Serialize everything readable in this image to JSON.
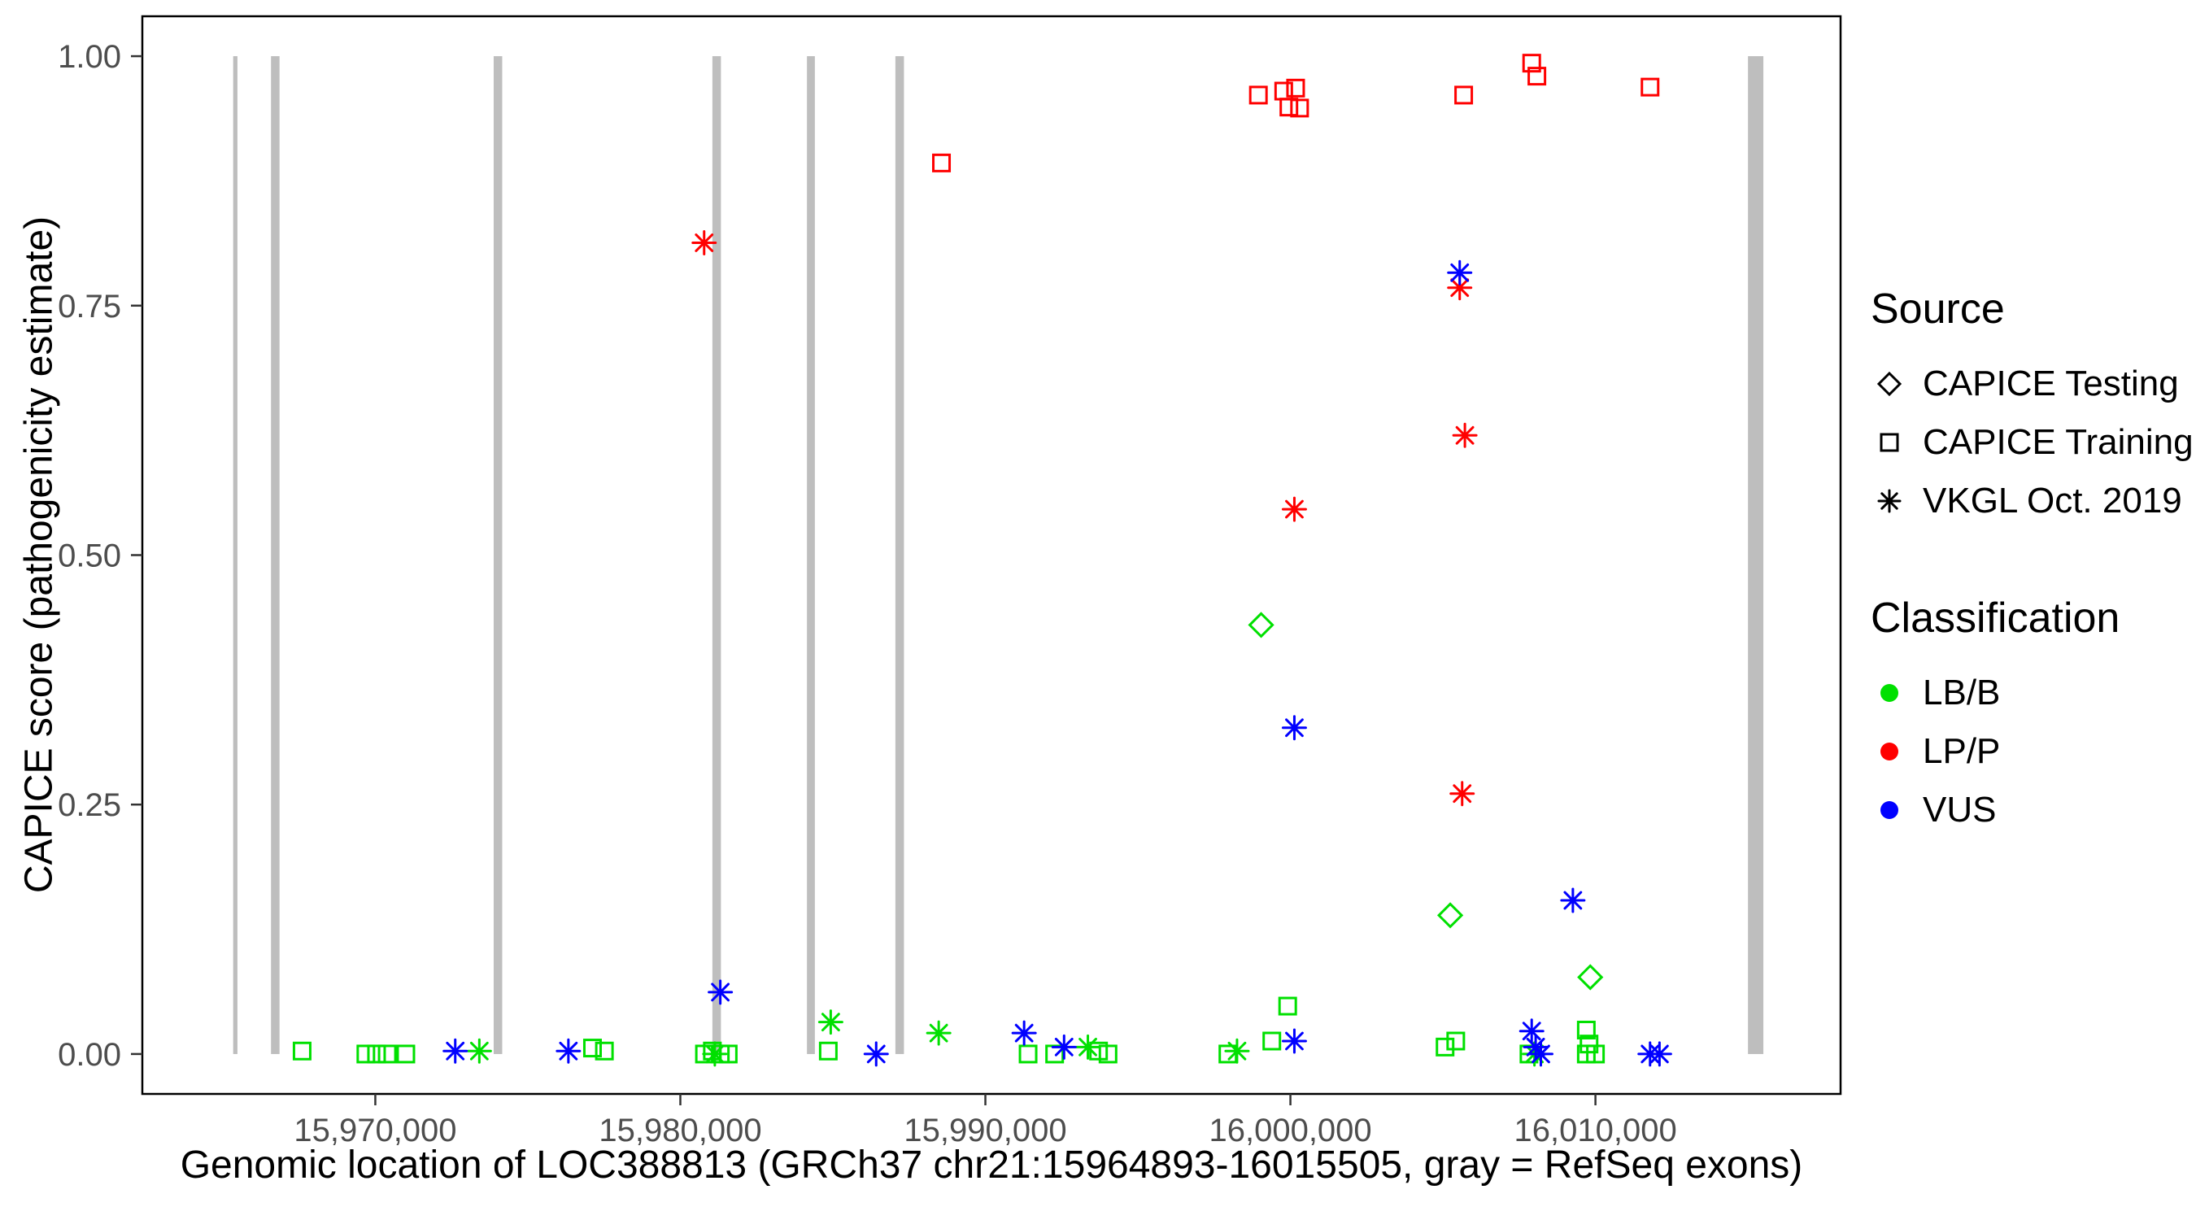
{
  "panel": {
    "background": "#FFFFFF",
    "border_color": "#000000",
    "tick_color": "#333333",
    "tick_label_color": "#4D4D4D"
  },
  "legend": {
    "source": {
      "title": "Source",
      "items": [
        {
          "label": "CAPICE Testing",
          "shape": "diamond"
        },
        {
          "label": "CAPICE Training",
          "shape": "square"
        },
        {
          "label": "VKGL Oct. 2019",
          "shape": "asterisk"
        }
      ]
    },
    "classification": {
      "title": "Classification",
      "items": [
        {
          "label": "LB/B",
          "color": "#00E000"
        },
        {
          "label": "LP/P",
          "color": "#FF0000"
        },
        {
          "label": "VUS",
          "color": "#0000FF"
        }
      ]
    }
  },
  "chart_data": {
    "type": "scatter",
    "title": "",
    "xlabel": "Genomic location of LOC388813 (GRCh37 chr21:15964893-16015505, gray = RefSeq exons)",
    "ylabel": "CAPICE score (pathogenicity estimate)",
    "xlim": [
      15962362,
      16018036
    ],
    "ylim": [
      -0.04,
      1.04
    ],
    "grid": false,
    "legend_position": "right",
    "x_ticks": [
      {
        "value": 15970000,
        "label": "15,970,000"
      },
      {
        "value": 15980000,
        "label": "15,980,000"
      },
      {
        "value": 15990000,
        "label": "15,990,000"
      },
      {
        "value": 16000000,
        "label": "16,000,000"
      },
      {
        "value": 16010000,
        "label": "16,010,000"
      }
    ],
    "y_ticks": [
      {
        "value": 0.0,
        "label": "0.00"
      },
      {
        "value": 0.25,
        "label": "0.25"
      },
      {
        "value": 0.5,
        "label": "0.50"
      },
      {
        "value": 0.75,
        "label": "0.75"
      },
      {
        "value": 1.0,
        "label": "1.00"
      }
    ],
    "exon_color": "#BEBEBE",
    "exons": [
      {
        "start": 15965340,
        "end": 15965480
      },
      {
        "start": 15966580,
        "end": 15966860
      },
      {
        "start": 15973880,
        "end": 15974160
      },
      {
        "start": 15981050,
        "end": 15981330
      },
      {
        "start": 15984150,
        "end": 15984410
      },
      {
        "start": 15987050,
        "end": 15987330
      },
      {
        "start": 16015000,
        "end": 16015505
      }
    ],
    "series": [
      {
        "name": "CAPICE Training / LB/B",
        "source": "CAPICE Training",
        "classification": "LB/B",
        "shape": "square",
        "color": "#00E000",
        "points": [
          [
            15967600,
            0.003
          ],
          [
            15969690,
            0.0
          ],
          [
            15970040,
            0.0
          ],
          [
            15970390,
            0.0
          ],
          [
            15971000,
            0.0
          ],
          [
            15977120,
            0.006
          ],
          [
            15977510,
            0.003
          ],
          [
            15980790,
            0.0
          ],
          [
            15981050,
            0.003
          ],
          [
            15981310,
            0.0
          ],
          [
            15981570,
            0.0
          ],
          [
            15984850,
            0.003
          ],
          [
            15991400,
            0.0
          ],
          [
            15992270,
            0.0
          ],
          [
            15993710,
            0.003
          ],
          [
            15994020,
            0.0
          ],
          [
            15997950,
            0.0
          ],
          [
            15999390,
            0.013
          ],
          [
            15999910,
            0.048
          ],
          [
            16005070,
            0.007
          ],
          [
            16005420,
            0.013
          ],
          [
            16007820,
            0.0
          ],
          [
            16009700,
            0.024
          ],
          [
            16009790,
            0.01
          ],
          [
            16009700,
            0.0
          ],
          [
            16010000,
            0.0
          ]
        ]
      },
      {
        "name": "CAPICE Training / LP/P",
        "source": "CAPICE Training",
        "classification": "LP/P",
        "shape": "square",
        "color": "#FF0000",
        "points": [
          [
            15988560,
            0.893
          ],
          [
            15998950,
            0.961
          ],
          [
            15999780,
            0.965
          ],
          [
            16000170,
            0.968
          ],
          [
            15999950,
            0.949
          ],
          [
            16000300,
            0.948
          ],
          [
            16005680,
            0.961
          ],
          [
            16007910,
            0.993
          ],
          [
            16008080,
            0.98
          ],
          [
            16011790,
            0.969
          ]
        ]
      },
      {
        "name": "CAPICE Testing / LB/B",
        "source": "CAPICE Testing",
        "classification": "LB/B",
        "shape": "diamond",
        "color": "#00E000",
        "points": [
          [
            15999040,
            0.43
          ],
          [
            16005240,
            0.139
          ],
          [
            16009830,
            0.077
          ]
        ]
      },
      {
        "name": "VKGL Oct. 2019 / LB/B",
        "source": "VKGL Oct. 2019",
        "classification": "LB/B",
        "shape": "asterisk",
        "color": "#00E000",
        "points": [
          [
            15973410,
            0.003
          ],
          [
            15981130,
            0.0
          ],
          [
            15984930,
            0.032
          ],
          [
            15988470,
            0.021
          ],
          [
            15993360,
            0.007
          ],
          [
            15998250,
            0.003
          ],
          [
            16008000,
            0.0
          ]
        ]
      },
      {
        "name": "VKGL Oct. 2019 / LP/P",
        "source": "VKGL Oct. 2019",
        "classification": "LP/P",
        "shape": "asterisk",
        "color": "#FF0000",
        "points": [
          [
            15980780,
            0.813
          ],
          [
            16000130,
            0.546
          ],
          [
            16005550,
            0.768
          ],
          [
            16005720,
            0.62
          ],
          [
            16005630,
            0.261
          ]
        ]
      },
      {
        "name": "VKGL Oct. 2019 / VUS",
        "source": "VKGL Oct. 2019",
        "classification": "VUS",
        "shape": "asterisk",
        "color": "#0000FF",
        "points": [
          [
            15972620,
            0.003
          ],
          [
            15976330,
            0.003
          ],
          [
            15981310,
            0.062
          ],
          [
            15986420,
            0.0
          ],
          [
            15991270,
            0.021
          ],
          [
            15992580,
            0.007
          ],
          [
            16000130,
            0.327
          ],
          [
            16000130,
            0.013
          ],
          [
            16005550,
            0.783
          ],
          [
            16007910,
            0.023
          ],
          [
            16008040,
            0.007
          ],
          [
            16008210,
            0.0
          ],
          [
            16009260,
            0.154
          ],
          [
            16011790,
            0.0
          ],
          [
            16012100,
            0.0
          ]
        ]
      }
    ]
  }
}
